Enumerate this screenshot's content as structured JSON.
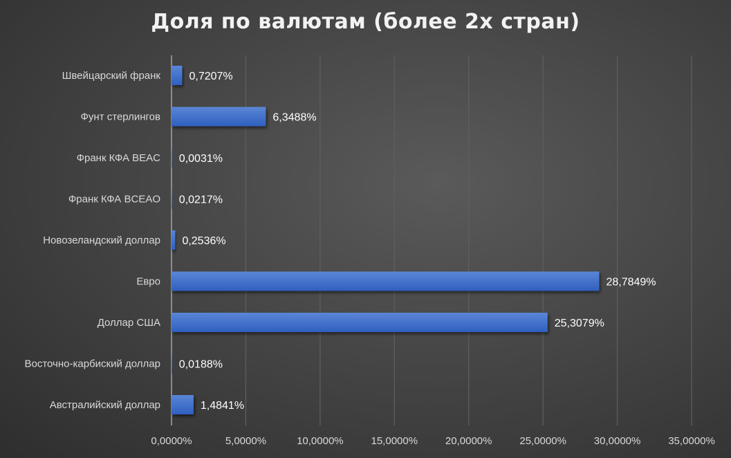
{
  "chart_data": {
    "type": "bar",
    "orientation": "horizontal",
    "title": "Доля по валютам (более 2х стран)",
    "categories": [
      "Швейцарский франк",
      "Фунт стерлингов",
      "Франк КФА BEAC",
      "Франк КФА BCEAO",
      "Новозеландский доллар",
      "Евро",
      "Доллар США",
      "Восточно-карбиский доллар",
      "Австралийский доллар"
    ],
    "values": [
      0.7207,
      6.3488,
      0.0031,
      0.0217,
      0.2536,
      28.7849,
      25.3079,
      0.0188,
      1.4841
    ],
    "data_labels": [
      "0,7207%",
      "6,3488%",
      "0,0031%",
      "0,0217%",
      "0,2536%",
      "28,7849%",
      "25,3079%",
      "0,0188%",
      "1,4841%"
    ],
    "xlim": [
      0,
      35
    ],
    "x_ticks": [
      0,
      5,
      10,
      15,
      20,
      25,
      30,
      35
    ],
    "x_tick_labels": [
      "0,0000%",
      "5,0000%",
      "10,0000%",
      "15,0000%",
      "20,0000%",
      "25,0000%",
      "30,0000%",
      "35,0000%"
    ],
    "xlabel": "",
    "ylabel": "",
    "grid": true,
    "legend": "none",
    "bar_color": "#4472c4"
  }
}
